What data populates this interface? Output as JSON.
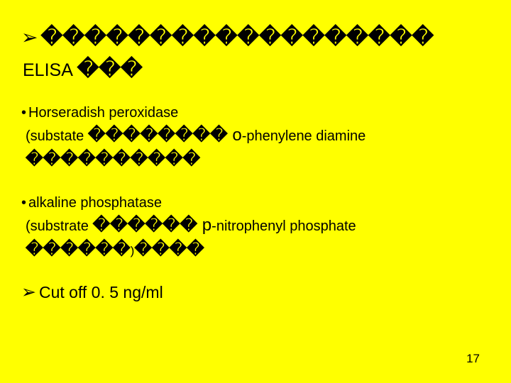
{
  "colors": {
    "background": "#ffff00",
    "text": "#000000"
  },
  "fonts": {
    "body_family": "Arial, sans-serif",
    "title_size_pt": 26,
    "item_size_pt": 18,
    "pagenum_size_pt": 16
  },
  "glyphs": {
    "arrow": "➢",
    "box": "�",
    "dot": "•"
  },
  "title": {
    "boxes_line1_count": 18,
    "prefix_line2": "ELISA ",
    "boxes_line2_count": 3
  },
  "items": [
    {
      "heading": "Horseradish peroxidase",
      "sub_prefix": "(substate ",
      "sub_boxes1_count": 8,
      "sub_mid_big": " o",
      "sub_mid_rest": "-phenylene diamine",
      "sub_boxes2_count": 10,
      "sub_suffix": ""
    },
    {
      "heading": "alkaline phosphatase",
      "sub_prefix": "(substrate ",
      "sub_boxes1_count": 6,
      "sub_mid_big": " p",
      "sub_mid_rest": "-nitrophenyl phosphate",
      "sub_boxes2_count": 10,
      "sub_suffix": ")"
    }
  ],
  "cutoff": "Cut off 0. 5 ng/ml",
  "page_number": "17"
}
